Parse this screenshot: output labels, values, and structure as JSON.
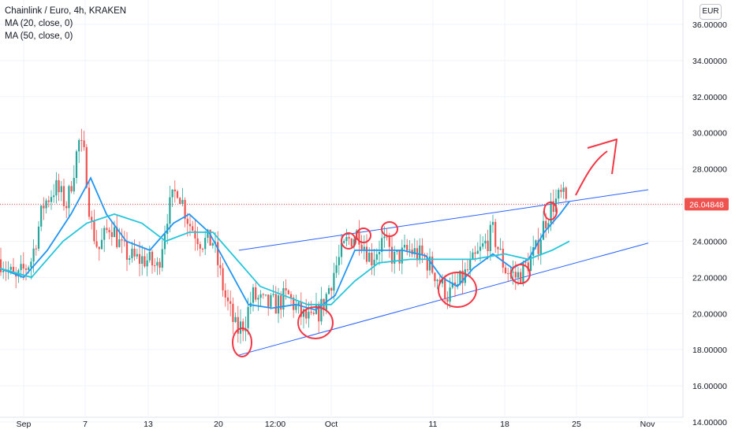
{
  "legend": {
    "symbol_line": "Chainlink / Euro, 4h, KRAKEN",
    "ma20_line": "MA (20, close, 0)",
    "ma50_line": "MA (50, close, 0)"
  },
  "currency_button": "EUR",
  "colors": {
    "up": "#26a69a",
    "down": "#ef5350",
    "ma20": "#2196f3",
    "ma50": "#26c6da",
    "channel": "#2962ff",
    "annotation": "#f23645",
    "price_line": "#ef5350"
  },
  "chart_data": {
    "type": "candlestick",
    "y_axis_ticks": [
      "14.00000",
      "16.00000",
      "18.00000",
      "20.00000",
      "22.00000",
      "24.00000",
      "26.00000",
      "28.00000",
      "30.00000",
      "32.00000",
      "34.00000",
      "36.00000"
    ],
    "ylim": [
      14,
      37
    ],
    "x_axis_labels": [
      "Sep",
      "7",
      "13",
      "20",
      "12:00",
      "Oct",
      "11",
      "18",
      "25",
      "Nov"
    ],
    "last_price_label": "26.04848",
    "last_price": 26.05,
    "close_path": [
      [
        0,
        23.0
      ],
      [
        20,
        21.8
      ],
      [
        40,
        23.0
      ],
      [
        55,
        26.0
      ],
      [
        70,
        27.0
      ],
      [
        85,
        26.0
      ],
      [
        100,
        29.5
      ],
      [
        108,
        28.5
      ],
      [
        115,
        25.0
      ],
      [
        125,
        23.5
      ],
      [
        140,
        25.0
      ],
      [
        155,
        23.5
      ],
      [
        170,
        23.0
      ],
      [
        185,
        23.0
      ],
      [
        200,
        22.5
      ],
      [
        212,
        25.5
      ],
      [
        225,
        27.0
      ],
      [
        240,
        25.0
      ],
      [
        255,
        24.0
      ],
      [
        270,
        24.0
      ],
      [
        285,
        21.0
      ],
      [
        300,
        19.0
      ],
      [
        310,
        19.5
      ],
      [
        320,
        21.0
      ],
      [
        335,
        20.5
      ],
      [
        350,
        20.5
      ],
      [
        365,
        21.0
      ],
      [
        380,
        20.0
      ],
      [
        395,
        19.5
      ],
      [
        410,
        20.5
      ],
      [
        425,
        22.5
      ],
      [
        440,
        24.0
      ],
      [
        455,
        24.5
      ],
      [
        470,
        23.0
      ],
      [
        485,
        24.0
      ],
      [
        500,
        23.0
      ],
      [
        520,
        23.5
      ],
      [
        540,
        23.0
      ],
      [
        555,
        22.0
      ],
      [
        568,
        21.0
      ],
      [
        580,
        21.5
      ],
      [
        595,
        22.5
      ],
      [
        610,
        23.5
      ],
      [
        625,
        24.5
      ],
      [
        640,
        22.5
      ],
      [
        655,
        22.0
      ],
      [
        665,
        22.5
      ],
      [
        680,
        23.5
      ],
      [
        690,
        25.0
      ],
      [
        700,
        26.0
      ],
      [
        712,
        26.5
      ],
      [
        720,
        26.0
      ]
    ],
    "ma20": [
      [
        0,
        22.5
      ],
      [
        30,
        22.0
      ],
      [
        60,
        23.5
      ],
      [
        90,
        25.5
      ],
      [
        115,
        27.5
      ],
      [
        135,
        25.5
      ],
      [
        160,
        24.0
      ],
      [
        190,
        23.5
      ],
      [
        220,
        25.0
      ],
      [
        240,
        25.5
      ],
      [
        265,
        24.5
      ],
      [
        290,
        22.5
      ],
      [
        315,
        20.5
      ],
      [
        345,
        20.3
      ],
      [
        375,
        20.5
      ],
      [
        400,
        20.2
      ],
      [
        425,
        21.0
      ],
      [
        450,
        23.5
      ],
      [
        480,
        23.5
      ],
      [
        510,
        23.5
      ],
      [
        540,
        23.2
      ],
      [
        560,
        22.0
      ],
      [
        580,
        21.5
      ],
      [
        600,
        22.5
      ],
      [
        625,
        23.3
      ],
      [
        650,
        22.5
      ],
      [
        670,
        23.0
      ],
      [
        690,
        24.5
      ],
      [
        710,
        25.5
      ],
      [
        722,
        26.2
      ]
    ],
    "ma50": [
      [
        0,
        22.5
      ],
      [
        40,
        22.0
      ],
      [
        80,
        24.0
      ],
      [
        110,
        25.0
      ],
      [
        145,
        25.5
      ],
      [
        180,
        25.0
      ],
      [
        210,
        24.0
      ],
      [
        240,
        24.5
      ],
      [
        270,
        24.5
      ],
      [
        300,
        23.0
      ],
      [
        330,
        21.5
      ],
      [
        360,
        21.0
      ],
      [
        390,
        20.5
      ],
      [
        420,
        20.5
      ],
      [
        450,
        21.8
      ],
      [
        480,
        22.8
      ],
      [
        520,
        23.0
      ],
      [
        560,
        23.0
      ],
      [
        600,
        23.0
      ],
      [
        640,
        23.3
      ],
      [
        670,
        23.0
      ],
      [
        700,
        23.5
      ],
      [
        722,
        24.0
      ]
    ],
    "channel_upper": [
      [
        303,
        23.5
      ],
      [
        822,
        26.85
      ]
    ],
    "channel_lower": [
      [
        303,
        17.7
      ],
      [
        822,
        23.9
      ]
    ]
  }
}
